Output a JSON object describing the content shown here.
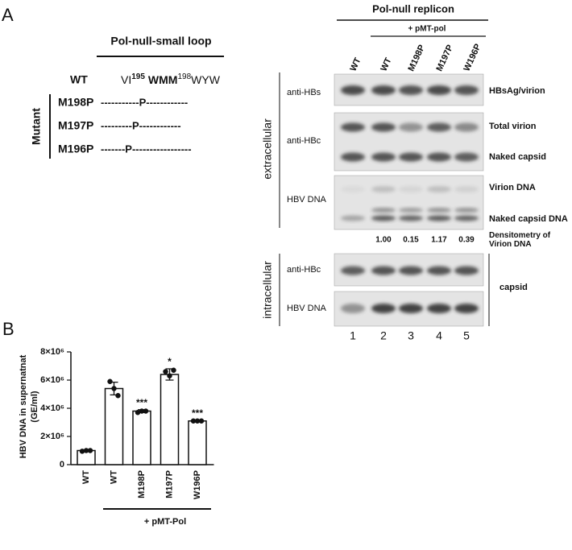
{
  "panel_a": {
    "label": "A",
    "loop_title": "Pol-null-small loop",
    "wt_label": "WT",
    "wt_seq": {
      "a": "VI",
      "sup1": "195",
      "b": "WMM",
      "sup2": "198",
      "c": "WYW"
    },
    "mutant_label": "Mutant",
    "mutants": [
      {
        "name": "M198P",
        "seq": "-----------P------------"
      },
      {
        "name": "M197P",
        "seq": "---------P------------"
      },
      {
        "name": "M196P",
        "seq": "-------P-----------------"
      }
    ],
    "blot": {
      "title": "Pol-null replicon",
      "plus": "+ pMT-pol",
      "lanes": [
        "WT",
        "WT",
        "M198P",
        "M197P",
        "W196P"
      ],
      "lane_numbers": [
        "1",
        "2",
        "3",
        "4",
        "5"
      ],
      "extracellular": "extracellular",
      "intracellular": "intracellular",
      "row_labels": [
        "anti-HBs",
        "anti-HBc",
        "HBV DNA",
        "anti-HBc",
        "HBV DNA"
      ],
      "right_labels": [
        "HBsAg/virion",
        "Total virion",
        "Naked capsid",
        "Virion DNA",
        "Naked capsid DNA"
      ],
      "densitometry_label": "Densitometry of Virion DNA",
      "densitometry": [
        "1.00",
        "0.15",
        "1.17",
        "0.39"
      ],
      "capsid_label": "capsid"
    }
  },
  "panel_b_label": "B",
  "chart_data": {
    "type": "bar",
    "ylabel": [
      "HBV DNA in supernatnat",
      "(GE/ml)"
    ],
    "categories": [
      "WT",
      "WT",
      "M198P",
      "M197P",
      "W196P"
    ],
    "values": [
      1000000,
      5400000,
      3800000,
      6400000,
      3100000
    ],
    "errors": [
      50000,
      450000,
      100000,
      400000,
      50000
    ],
    "points": [
      [
        950000,
        1000000,
        1000000
      ],
      [
        5900000,
        5400000,
        4900000
      ],
      [
        3700000,
        3800000,
        3800000
      ],
      [
        6600000,
        6300000,
        6700000
      ],
      [
        3100000,
        3100000,
        3100000
      ]
    ],
    "significance": [
      null,
      null,
      "***",
      "*",
      "***"
    ],
    "group_label": "+ pMT-Pol",
    "color": "#ffffff",
    "ylim": [
      0,
      8000000
    ],
    "yticks": [
      0,
      {
        "value": 2000000,
        "label": "2×10⁶"
      },
      {
        "value": 4000000,
        "label": "4×10⁶"
      },
      {
        "value": 6000000,
        "label": "6×10⁶"
      },
      {
        "value": 8000000,
        "label": "8×10⁶"
      }
    ]
  }
}
